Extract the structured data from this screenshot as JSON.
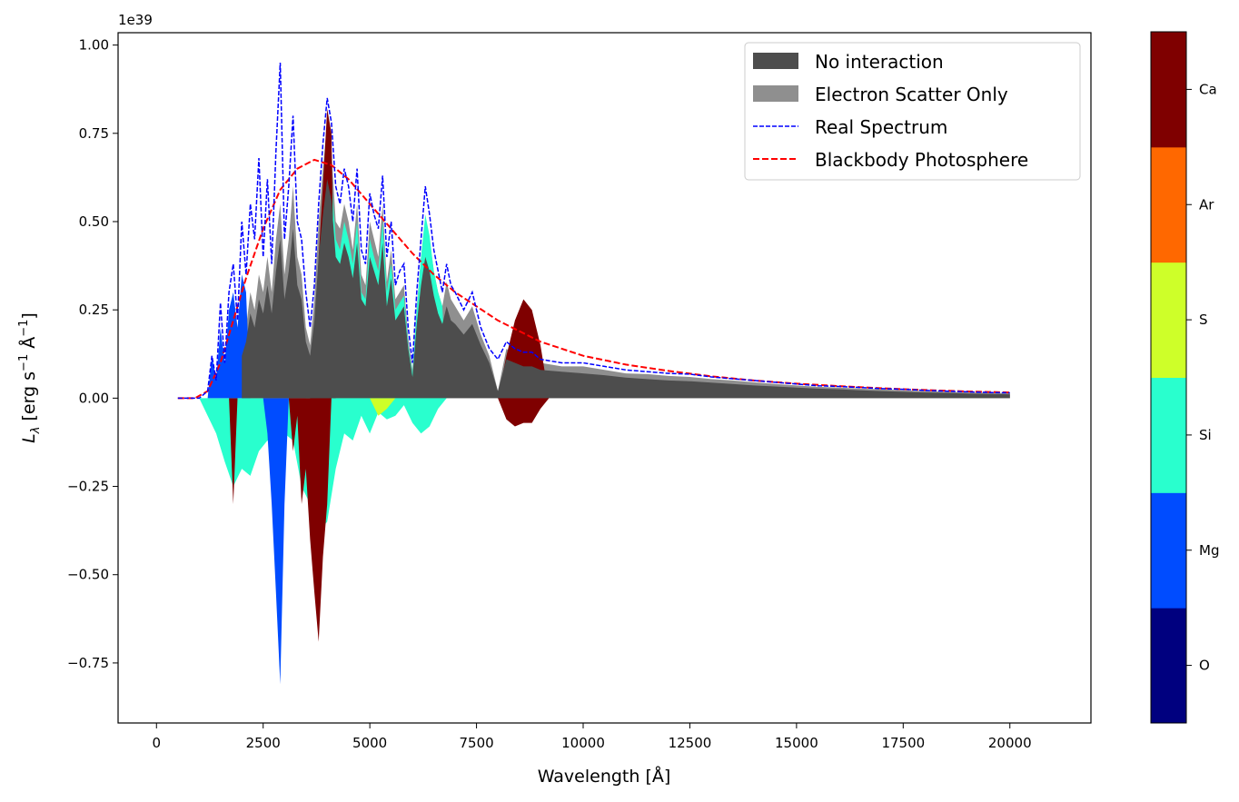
{
  "chart_data": {
    "type": "area",
    "title": "",
    "xlabel": "Wavelength [Å]",
    "ylabel_main": "L",
    "ylabel_sub": "λ",
    "ylabel_unit": " [erg s",
    "ylabel_exp1": "−1",
    "ylabel_unit2": " Å",
    "ylabel_exp2": "−1",
    "ylabel_close": "]",
    "y_offset_label": "1e39",
    "xlim": [
      -900,
      21900
    ],
    "ylim": [
      -0.92,
      1.035
    ],
    "x_ticks": [
      0,
      2500,
      5000,
      7500,
      10000,
      12500,
      15000,
      17500,
      20000
    ],
    "x_tick_labels": [
      "0",
      "2500",
      "5000",
      "7500",
      "10000",
      "12500",
      "15000",
      "17500",
      "20000"
    ],
    "y_ticks": [
      -0.75,
      -0.5,
      -0.25,
      0.0,
      0.25,
      0.5,
      0.75,
      1.0
    ],
    "y_tick_labels": [
      "−0.75",
      "−0.50",
      "−0.25",
      "0.00",
      "0.25",
      "0.50",
      "0.75",
      "1.00"
    ],
    "grid": false,
    "legend_position": "top-right",
    "legend": [
      {
        "label": "No interaction",
        "kind": "patch",
        "color": "#4d4d4d"
      },
      {
        "label": "Electron Scatter Only",
        "kind": "patch",
        "color": "#8f8f8f"
      },
      {
        "label": "Real Spectrum",
        "kind": "dashed-line",
        "color": "#0000ff"
      },
      {
        "label": "Blackbody Photosphere",
        "kind": "dashed-line",
        "color": "#ff0000"
      }
    ],
    "colorbar": {
      "labels": [
        "O",
        "Mg",
        "Si",
        "S",
        "Ar",
        "Ca"
      ],
      "colors": [
        "#00007f",
        "#004cff",
        "#29ffce",
        "#ceff29",
        "#ff6800",
        "#7f0000"
      ]
    },
    "series": [
      {
        "name": "Blackbody Photosphere",
        "type": "line",
        "color": "#ff0000",
        "x": [
          500,
          900,
          1200,
          1500,
          1800,
          2100,
          2500,
          2900,
          3300,
          3700,
          4100,
          4500,
          5000,
          5500,
          6000,
          6500,
          7000,
          7500,
          8000,
          9000,
          10000,
          11000,
          12000,
          13000,
          14000,
          15000,
          16000,
          17000,
          18000,
          19000,
          20000
        ],
        "y": [
          0.0,
          0.0,
          0.02,
          0.1,
          0.22,
          0.34,
          0.48,
          0.59,
          0.65,
          0.675,
          0.66,
          0.62,
          0.55,
          0.48,
          0.41,
          0.35,
          0.3,
          0.26,
          0.22,
          0.16,
          0.12,
          0.095,
          0.077,
          0.062,
          0.05,
          0.041,
          0.034,
          0.028,
          0.023,
          0.019,
          0.016
        ]
      },
      {
        "name": "Real Spectrum",
        "type": "line",
        "color": "#0000ff",
        "x": [
          500,
          1000,
          1200,
          1300,
          1400,
          1500,
          1600,
          1700,
          1800,
          1900,
          2000,
          2100,
          2200,
          2300,
          2400,
          2500,
          2600,
          2700,
          2800,
          2900,
          3000,
          3100,
          3200,
          3300,
          3400,
          3500,
          3600,
          3700,
          3800,
          3900,
          4000,
          4100,
          4200,
          4300,
          4400,
          4500,
          4600,
          4700,
          4800,
          4900,
          5000,
          5100,
          5200,
          5300,
          5400,
          5500,
          5600,
          5700,
          5800,
          5900,
          6000,
          6100,
          6200,
          6300,
          6400,
          6500,
          6600,
          6700,
          6800,
          6900,
          7000,
          7200,
          7400,
          7600,
          7800,
          8000,
          8200,
          8400,
          8600,
          8800,
          9000,
          9500,
          10000,
          10500,
          11000,
          11500,
          12000,
          12500,
          13000,
          13500,
          14000,
          14500,
          15000,
          15500,
          16000,
          16500,
          17000,
          17500,
          18000,
          18500,
          19000,
          19500,
          20000
        ],
        "y": [
          0.0,
          0.0,
          0.02,
          0.12,
          0.05,
          0.27,
          0.1,
          0.3,
          0.38,
          0.22,
          0.5,
          0.35,
          0.55,
          0.45,
          0.68,
          0.4,
          0.62,
          0.38,
          0.7,
          0.95,
          0.45,
          0.6,
          0.8,
          0.5,
          0.45,
          0.3,
          0.2,
          0.32,
          0.55,
          0.72,
          0.85,
          0.78,
          0.6,
          0.55,
          0.65,
          0.6,
          0.5,
          0.65,
          0.42,
          0.38,
          0.58,
          0.52,
          0.48,
          0.63,
          0.4,
          0.5,
          0.32,
          0.36,
          0.38,
          0.2,
          0.1,
          0.3,
          0.45,
          0.6,
          0.52,
          0.42,
          0.36,
          0.3,
          0.38,
          0.32,
          0.3,
          0.25,
          0.3,
          0.2,
          0.14,
          0.11,
          0.16,
          0.14,
          0.13,
          0.13,
          0.11,
          0.1,
          0.1,
          0.09,
          0.08,
          0.075,
          0.07,
          0.068,
          0.06,
          0.055,
          0.05,
          0.045,
          0.04,
          0.035,
          0.033,
          0.03,
          0.027,
          0.025,
          0.022,
          0.02,
          0.018,
          0.016,
          0.015
        ]
      },
      {
        "name": "Electron Scatter Only",
        "type": "area",
        "color": "#8f8f8f",
        "x": [
          2000,
          2100,
          2200,
          2300,
          2400,
          2500,
          2600,
          2700,
          2800,
          2900,
          3000,
          3100,
          3200,
          3300,
          3400,
          3500,
          3600,
          3700,
          3800,
          3900,
          4000,
          4100,
          4200,
          4300,
          4400,
          4500,
          4600,
          4700,
          4800,
          4900,
          5000,
          5100,
          5200,
          5300,
          5400,
          5500,
          5600,
          5700,
          5800,
          5900,
          6000,
          6100,
          6200,
          6300,
          6400,
          6500,
          6600,
          6700,
          6800,
          6900,
          7000,
          7200,
          7400,
          7600,
          7800,
          8000,
          8200,
          8400,
          8600,
          8800,
          9000,
          9500,
          10000,
          10500,
          11000,
          11500,
          12000,
          12500,
          13000,
          13500,
          14000,
          14500,
          15000,
          15500,
          16000,
          16500,
          17000,
          17500,
          18000,
          18500,
          19000,
          19500,
          20000
        ],
        "y": [
          0.15,
          0.2,
          0.3,
          0.25,
          0.35,
          0.3,
          0.4,
          0.3,
          0.45,
          0.55,
          0.35,
          0.45,
          0.6,
          0.4,
          0.35,
          0.2,
          0.15,
          0.28,
          0.5,
          0.65,
          0.78,
          0.7,
          0.5,
          0.48,
          0.55,
          0.5,
          0.42,
          0.55,
          0.35,
          0.32,
          0.5,
          0.45,
          0.4,
          0.55,
          0.33,
          0.42,
          0.28,
          0.3,
          0.32,
          0.17,
          0.08,
          0.26,
          0.4,
          0.5,
          0.45,
          0.36,
          0.3,
          0.26,
          0.33,
          0.28,
          0.26,
          0.22,
          0.26,
          0.18,
          0.12,
          0.02,
          0.14,
          0.12,
          0.11,
          0.11,
          0.1,
          0.09,
          0.09,
          0.08,
          0.07,
          0.068,
          0.063,
          0.06,
          0.054,
          0.05,
          0.045,
          0.04,
          0.036,
          0.032,
          0.03,
          0.027,
          0.025,
          0.022,
          0.02,
          0.018,
          0.016,
          0.015,
          0.014
        ]
      },
      {
        "name": "No interaction",
        "type": "area",
        "color": "#4d4d4d",
        "x": [
          2000,
          2100,
          2200,
          2300,
          2400,
          2500,
          2600,
          2700,
          2800,
          2900,
          3000,
          3100,
          3200,
          3300,
          3400,
          3500,
          3600,
          3700,
          3800,
          3900,
          4000,
          4100,
          4200,
          4300,
          4400,
          4500,
          4600,
          4700,
          4800,
          4900,
          5000,
          5100,
          5200,
          5300,
          5400,
          5500,
          5600,
          5700,
          5800,
          5900,
          6000,
          6100,
          6200,
          6300,
          6400,
          6500,
          6600,
          6700,
          6800,
          6900,
          7000,
          7200,
          7400,
          7600,
          7800,
          8000,
          8200,
          8400,
          8600,
          8800,
          9000,
          9500,
          10000,
          10500,
          11000,
          11500,
          12000,
          12500,
          13000,
          13500,
          14000,
          14500,
          15000,
          15500,
          16000,
          16500,
          17000,
          17500,
          18000,
          18500,
          19000,
          19500,
          20000
        ],
        "y": [
          0.12,
          0.16,
          0.24,
          0.2,
          0.28,
          0.24,
          0.32,
          0.24,
          0.36,
          0.45,
          0.28,
          0.36,
          0.48,
          0.32,
          0.28,
          0.16,
          0.12,
          0.22,
          0.4,
          0.52,
          0.62,
          0.56,
          0.4,
          0.38,
          0.44,
          0.4,
          0.34,
          0.44,
          0.28,
          0.26,
          0.4,
          0.36,
          0.32,
          0.44,
          0.26,
          0.34,
          0.22,
          0.24,
          0.26,
          0.14,
          0.06,
          0.21,
          0.32,
          0.4,
          0.36,
          0.29,
          0.24,
          0.21,
          0.26,
          0.22,
          0.21,
          0.18,
          0.21,
          0.15,
          0.1,
          0.02,
          0.11,
          0.1,
          0.09,
          0.09,
          0.08,
          0.075,
          0.07,
          0.065,
          0.058,
          0.054,
          0.05,
          0.048,
          0.044,
          0.04,
          0.036,
          0.033,
          0.03,
          0.027,
          0.025,
          0.022,
          0.02,
          0.018,
          0.016,
          0.015,
          0.013,
          0.012,
          0.011
        ]
      },
      {
        "name": "Si",
        "type": "area",
        "color": "#29ffce",
        "x": [
          3500,
          3600,
          3700,
          3800,
          3900,
          4000,
          4100,
          4200,
          4300,
          4400,
          4500,
          4600,
          4700,
          4800,
          4900,
          5000,
          5100,
          5200,
          5300,
          5400,
          5500,
          5600,
          5700,
          5800,
          5900,
          6000,
          6100,
          6200,
          6300,
          6400,
          6500,
          6600,
          6700,
          6800
        ],
        "y": [
          0.0,
          0.05,
          0.2,
          0.35,
          0.5,
          0.68,
          0.62,
          0.45,
          0.42,
          0.5,
          0.45,
          0.38,
          0.5,
          0.3,
          0.28,
          0.45,
          0.4,
          0.36,
          0.5,
          0.3,
          0.38,
          0.25,
          0.27,
          0.29,
          0.15,
          0.07,
          0.25,
          0.4,
          0.52,
          0.46,
          0.36,
          0.3,
          0.26,
          0.0
        ]
      },
      {
        "name": "Ca",
        "type": "area",
        "color": "#7f0000",
        "x": [
          3600,
          3700,
          3800,
          3900,
          4000,
          4100,
          4200,
          8000,
          8200,
          8400,
          8600,
          8800,
          9000,
          9200
        ],
        "y": [
          0.0,
          0.15,
          0.4,
          0.6,
          0.82,
          0.75,
          0.0,
          0.0,
          0.12,
          0.22,
          0.28,
          0.25,
          0.15,
          0.0
        ]
      },
      {
        "name": "Mg",
        "type": "area",
        "color": "#004cff",
        "x": [
          1200,
          1300,
          1400,
          1500,
          1600,
          1700,
          1800,
          1900,
          2000,
          2100,
          2200
        ],
        "y": [
          0.0,
          0.12,
          0.05,
          0.2,
          0.1,
          0.25,
          0.3,
          0.2,
          0.35,
          0.3,
          0.0
        ]
      },
      {
        "name": "Absorption Si",
        "type": "area-negative",
        "color": "#29ffce",
        "x": [
          1000,
          1200,
          1400,
          1600,
          1800,
          2000,
          2200,
          2400,
          2600,
          2800,
          3000,
          3200,
          3400,
          3600,
          3800,
          4000,
          4200,
          4400,
          4600,
          4800,
          5000,
          5200,
          5400,
          5600,
          5800,
          6000,
          6200,
          6400,
          6600,
          6800
        ],
        "y": [
          0.0,
          -0.05,
          -0.1,
          -0.18,
          -0.25,
          -0.2,
          -0.22,
          -0.15,
          -0.12,
          -0.15,
          -0.1,
          -0.12,
          -0.25,
          -0.3,
          -0.38,
          -0.35,
          -0.2,
          -0.1,
          -0.12,
          -0.05,
          -0.1,
          -0.04,
          -0.06,
          -0.05,
          -0.02,
          -0.07,
          -0.1,
          -0.08,
          -0.03,
          0.0
        ]
      },
      {
        "name": "Absorption Mg",
        "type": "area-negative",
        "color": "#004cff",
        "x": [
          2500,
          2600,
          2700,
          2800,
          2900,
          3000,
          3100
        ],
        "y": [
          0.0,
          -0.1,
          -0.3,
          -0.55,
          -0.81,
          -0.3,
          0.0
        ]
      },
      {
        "name": "Absorption Ca",
        "type": "area-negative",
        "color": "#7f0000",
        "x": [
          1700,
          1800,
          1900,
          3100,
          3200,
          3300,
          3400,
          3500,
          3600,
          3700,
          3800,
          3900,
          4000,
          4100,
          8000,
          8200,
          8400,
          8600,
          8800,
          9000,
          9200
        ],
        "y": [
          0.0,
          -0.3,
          0.0,
          0.0,
          -0.15,
          -0.05,
          -0.3,
          -0.2,
          -0.4,
          -0.55,
          -0.69,
          -0.45,
          -0.3,
          0.0,
          0.0,
          -0.06,
          -0.08,
          -0.07,
          -0.07,
          -0.03,
          0.0
        ]
      },
      {
        "name": "Absorption S",
        "type": "area-negative",
        "color": "#ceff29",
        "x": [
          5000,
          5200,
          5400,
          5600
        ],
        "y": [
          0.0,
          -0.05,
          -0.03,
          0.0
        ]
      }
    ]
  }
}
